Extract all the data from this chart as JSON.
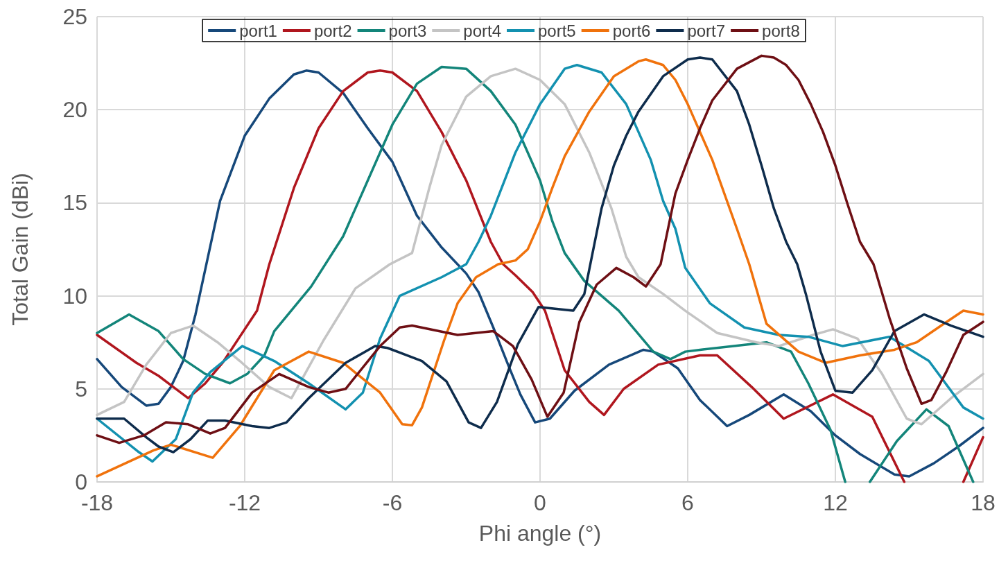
{
  "chart_data": {
    "type": "line",
    "xlabel": "Phi angle (°)",
    "ylabel": "Total Gain (dBi)",
    "xlim": [
      -18,
      18
    ],
    "xticks": [
      -18,
      -12,
      -6,
      0,
      6,
      12,
      18
    ],
    "ylim": [
      0,
      25
    ],
    "yticks": [
      0,
      5,
      10,
      15,
      20,
      25
    ],
    "grid": true,
    "legend": "top",
    "marker": "none",
    "line_style": "solid",
    "series": [
      {
        "name": "port1",
        "color": "#16487a",
        "x": [
          -18,
          -17,
          -16,
          -15.5,
          -15,
          -14.5,
          -14,
          -13,
          -12,
          -11,
          -10,
          -9.5,
          -9,
          -8,
          -7,
          -6,
          -5,
          -4,
          -3,
          -2.5,
          -1.9,
          -1.3,
          -0.8,
          -0.2,
          0.4,
          1.4,
          2.8,
          4.2,
          4.6,
          5.6,
          6.5,
          7.6,
          8.5,
          9.9,
          11,
          12,
          13,
          14.4,
          15,
          16,
          17,
          18
        ],
        "values": [
          6.6,
          5.1,
          4.1,
          4.2,
          5.1,
          6.5,
          9.0,
          15.1,
          18.6,
          20.6,
          21.9,
          22.1,
          22.0,
          20.9,
          19.0,
          17.2,
          14.3,
          12.6,
          11.2,
          10.2,
          8.3,
          6.3,
          4.7,
          3.2,
          3.4,
          4.9,
          6.3,
          7.1,
          7.0,
          6.1,
          4.4,
          3.0,
          3.6,
          4.7,
          3.8,
          2.5,
          1.5,
          0.4,
          0.3,
          1.0,
          1.9,
          2.9
        ]
      },
      {
        "name": "port2",
        "color": "#b0161e",
        "x": [
          -18,
          -16.4,
          -15.5,
          -14.3,
          -13.6,
          -12.9,
          -12.2,
          -11.5,
          -11,
          -10,
          -9,
          -8,
          -7,
          -6.5,
          -6,
          -5,
          -4,
          -3,
          -2,
          -1.5,
          -1,
          -0.3,
          0.2,
          1,
          2,
          2.6,
          3.4,
          4.8,
          6.5,
          7.2,
          8.6,
          9.9,
          11.9,
          13.5,
          14.8,
          16,
          17.2,
          18
        ],
        "values": [
          7.9,
          6.4,
          5.7,
          4.5,
          5.3,
          6.4,
          7.8,
          9.2,
          11.7,
          15.8,
          19.0,
          21.0,
          22.0,
          22.1,
          22.0,
          21.0,
          18.8,
          16.2,
          12.9,
          11.7,
          11.1,
          10.2,
          9.2,
          6.0,
          4.3,
          3.6,
          5.0,
          6.3,
          6.8,
          6.8,
          5.1,
          3.4,
          4.7,
          3.5,
          0,
          null,
          0,
          2.4
        ]
      },
      {
        "name": "port3",
        "color": "#13857a",
        "x": [
          -18,
          -16.7,
          -15.5,
          -14.5,
          -13.6,
          -12.6,
          -11.9,
          -11.2,
          -10.8,
          -9.3,
          -8,
          -7,
          -6,
          -5,
          -4,
          -3,
          -2,
          -1,
          0,
          0.5,
          1,
          1.8,
          3.2,
          4.6,
          5.3,
          5.9,
          6.5,
          9.2,
          10.2,
          10.9,
          11.8,
          12.4,
          12.9,
          13.4,
          14.5,
          15.7,
          16.6,
          17.6
        ],
        "values": [
          8.0,
          9.0,
          8.1,
          6.6,
          5.8,
          5.3,
          5.8,
          6.8,
          8.1,
          10.5,
          13.2,
          16.2,
          19.2,
          21.4,
          22.3,
          22.2,
          21.0,
          19.2,
          16.2,
          14.0,
          12.3,
          10.8,
          9.2,
          7.0,
          6.6,
          7.0,
          7.1,
          7.5,
          7.0,
          5.3,
          2.8,
          0,
          null,
          0,
          2.2,
          3.9,
          3.0,
          0
        ]
      },
      {
        "name": "port4",
        "color": "#c4c4c4",
        "x": [
          -18,
          -16.9,
          -16,
          -15,
          -14.1,
          -13.1,
          -12.2,
          -11,
          -10.1,
          -8.8,
          -7.5,
          -6.1,
          -5.2,
          -4.5,
          -4,
          -3,
          -2,
          -1,
          0,
          1,
          2,
          2.9,
          3.5,
          4,
          5,
          5.9,
          7.2,
          8.8,
          9.7,
          11.1,
          11.9,
          12.9,
          13.9,
          14.9,
          15.5,
          16.7,
          18
        ],
        "values": [
          3.6,
          4.3,
          6.3,
          8.0,
          8.4,
          7.5,
          6.5,
          5.1,
          4.5,
          7.6,
          10.4,
          11.7,
          12.3,
          15.8,
          18.1,
          20.7,
          21.8,
          22.2,
          21.6,
          20.3,
          17.7,
          14.7,
          12.1,
          11.0,
          10.1,
          9.2,
          8.0,
          7.5,
          7.3,
          7.9,
          8.2,
          7.7,
          5.8,
          3.4,
          3.1,
          4.5,
          5.8
        ]
      },
      {
        "name": "port5",
        "color": "#1391b0",
        "x": [
          -18,
          -16.3,
          -15.75,
          -14.8,
          -14.1,
          -13.4,
          -12.1,
          -10.8,
          -9.4,
          -7.9,
          -7.2,
          -6.5,
          -5.7,
          -4,
          -3,
          -2.5,
          -2,
          -1,
          0,
          1,
          1.5,
          2.5,
          3.5,
          4.5,
          5,
          5.5,
          5.9,
          6.9,
          8.3,
          9.7,
          10.9,
          12.3,
          14.2,
          15.8,
          17.2,
          18
        ],
        "values": [
          3.4,
          1.6,
          1.1,
          2.3,
          4.8,
          5.9,
          7.3,
          6.5,
          5.3,
          3.9,
          4.8,
          7.7,
          10.0,
          11.0,
          11.7,
          12.9,
          14.3,
          17.7,
          20.3,
          22.2,
          22.4,
          22.0,
          20.3,
          17.3,
          15.1,
          13.6,
          11.5,
          9.6,
          8.3,
          7.9,
          7.8,
          7.3,
          7.8,
          6.5,
          4.0,
          3.4
        ]
      },
      {
        "name": "port6",
        "color": "#f0720c",
        "x": [
          -18,
          -15.7,
          -15,
          -13.3,
          -12.2,
          -10.8,
          -9.4,
          -8,
          -6.5,
          -5.6,
          -5.2,
          -4.8,
          -3.9,
          -3.35,
          -2.6,
          -1.7,
          -1,
          -0.5,
          0,
          0.5,
          1,
          2,
          3,
          4,
          4.3,
          5,
          5.5,
          6,
          7,
          8,
          8.5,
          9.2,
          10.5,
          11.6,
          13,
          14.4,
          15.3,
          16.3,
          17.2,
          18
        ],
        "values": [
          0.3,
          1.7,
          2.0,
          1.3,
          3.0,
          6.0,
          7.0,
          6.4,
          4.8,
          3.1,
          3.05,
          4.0,
          7.6,
          9.6,
          11.0,
          11.7,
          11.9,
          12.5,
          14.0,
          15.8,
          17.5,
          19.9,
          21.8,
          22.6,
          22.7,
          22.4,
          21.6,
          20.3,
          17.3,
          13.6,
          11.7,
          8.5,
          7.0,
          6.4,
          6.8,
          7.1,
          7.5,
          8.4,
          9.2,
          9.0
        ]
      },
      {
        "name": "port7",
        "color": "#0e2c4c",
        "x": [
          -18,
          -16.9,
          -16,
          -15.5,
          -14.9,
          -14.2,
          -13.5,
          -12.8,
          -11.7,
          -11,
          -10.3,
          -9.4,
          -7.9,
          -6.7,
          -6.2,
          -4.8,
          -3.8,
          -2.9,
          -2.4,
          -1.75,
          -0.9,
          -0.06,
          1.35,
          1.8,
          2.5,
          3,
          3.5,
          4,
          5,
          6,
          6.5,
          7,
          8,
          8.5,
          9,
          9.5,
          10,
          10.45,
          10.8,
          11.4,
          12,
          12.7,
          13.5,
          14.4,
          15.6,
          16.7,
          18
        ],
        "values": [
          3.4,
          3.4,
          2.4,
          1.9,
          1.6,
          2.3,
          3.3,
          3.3,
          3.0,
          2.9,
          3.2,
          4.5,
          6.4,
          7.3,
          7.2,
          6.5,
          5.4,
          3.2,
          2.9,
          4.3,
          7.4,
          9.4,
          9.2,
          10.1,
          14.7,
          17.0,
          18.6,
          19.9,
          21.8,
          22.7,
          22.8,
          22.7,
          21.0,
          19.2,
          17.0,
          14.7,
          12.9,
          11.7,
          10.1,
          7.0,
          4.9,
          4.8,
          6.0,
          8.1,
          9.0,
          8.4,
          7.8
        ]
      },
      {
        "name": "port8",
        "color": "#6e0f14",
        "x": [
          -18,
          -17.1,
          -16.1,
          -15.2,
          -14.3,
          -13.4,
          -12.8,
          -11.7,
          -10.6,
          -9.4,
          -8.6,
          -7.9,
          -6.5,
          -5.7,
          -5.2,
          -3.35,
          -1.9,
          -1.1,
          -0.34,
          0.3,
          0.96,
          1.6,
          2.3,
          3.1,
          3.8,
          4.3,
          4.9,
          5.5,
          6,
          6.5,
          7,
          8,
          9,
          9.5,
          10,
          10.5,
          11,
          11.5,
          12,
          12.5,
          13,
          13.55,
          14.2,
          14.9,
          15.5,
          15.9,
          16.5,
          17.2,
          18
        ],
        "values": [
          2.5,
          2.1,
          2.5,
          3.2,
          3.1,
          2.6,
          2.9,
          4.8,
          5.8,
          5.1,
          4.8,
          5.0,
          7.3,
          8.3,
          8.4,
          7.9,
          8.1,
          7.3,
          5.5,
          3.5,
          4.8,
          8.6,
          10.6,
          11.5,
          11.0,
          10.5,
          11.7,
          15.5,
          17.3,
          19.0,
          20.5,
          22.2,
          22.9,
          22.8,
          22.4,
          21.6,
          20.3,
          18.8,
          17.0,
          14.9,
          12.9,
          11.7,
          8.8,
          6.1,
          4.2,
          4.4,
          5.9,
          7.9,
          8.6
        ]
      }
    ]
  }
}
